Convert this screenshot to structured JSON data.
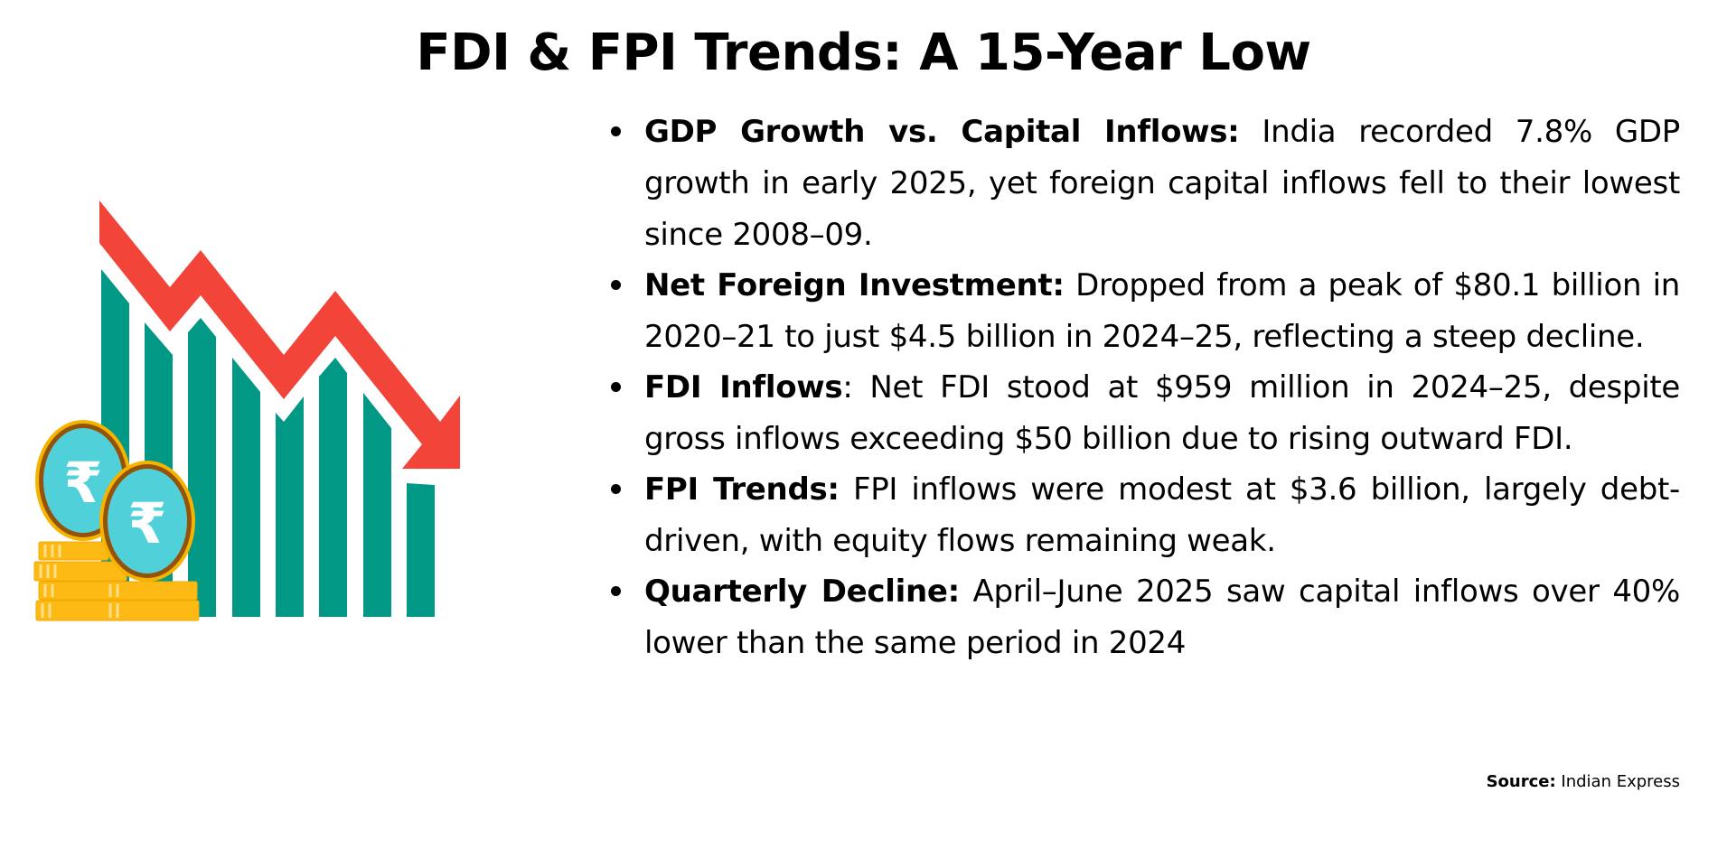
{
  "title": "FDI & FPI Trends: A 15-Year Low",
  "bullets": [
    {
      "label": "GDP Growth vs. Capital Inflows:",
      "text": " India recorded 7.8% GDP growth in early 2025, yet foreign capital inflows fell to their lowest since 2008–09."
    },
    {
      "label": "Net Foreign Investment:",
      "text": " Dropped from a peak of $80.1 billion in 2020–21 to just $4.5 billion in 2024–25, reflecting a steep decline."
    },
    {
      "label": "FDI Inflows",
      "text": ": Net FDI stood at $959 million in 2024–25, despite gross inflows exceeding $50 billion due to rising outward FDI."
    },
    {
      "label": "FPI Trends:",
      "text": " FPI inflows were modest at $3.6 billion, largely debt-driven, with equity flows remaining weak."
    },
    {
      "label": "Quarterly Decline:",
      "text": " April–June 2025 saw capital inflows over 40% lower than the same period in 2024"
    }
  ],
  "source": {
    "label": "Source:",
    "value": " Indian Express"
  },
  "illustration": {
    "icons": [
      "declining-bar-chart-icon",
      "down-trend-arrow-icon",
      "rupee-coin-icon",
      "gold-coin-stack-icon"
    ],
    "colors": {
      "bars": "#029886",
      "arrow": "#f3443a",
      "coin_face": "#50d1da",
      "coin_rim": "#94520a",
      "gold": "#fdb914"
    }
  }
}
